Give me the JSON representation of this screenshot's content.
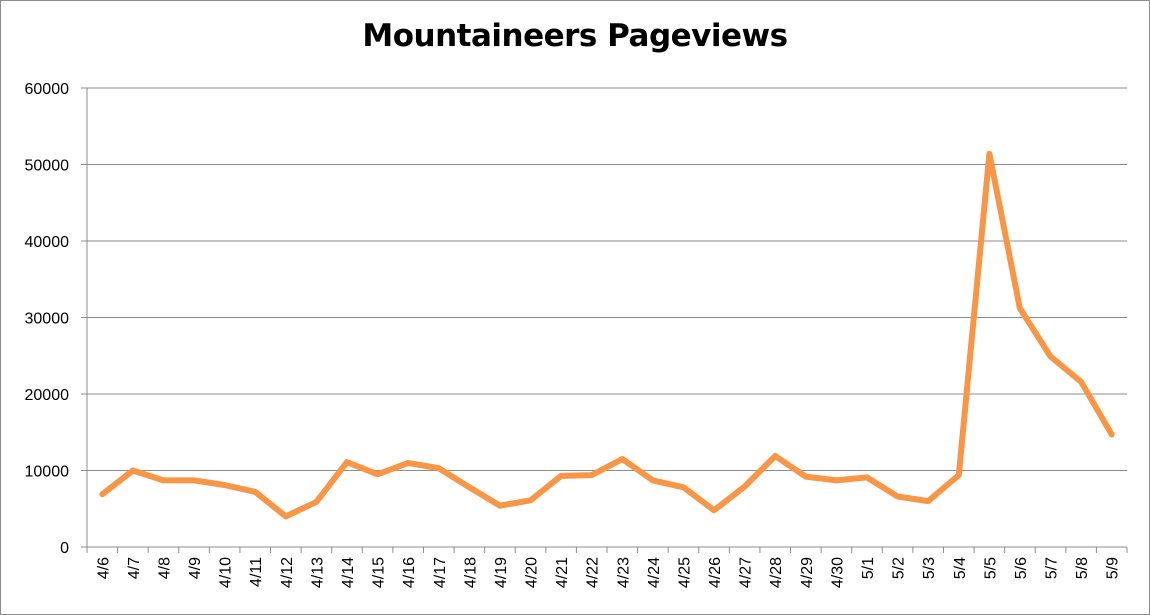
{
  "chart_data": {
    "type": "line",
    "title": "Mountaineers Pageviews",
    "xlabel": "",
    "ylabel": "",
    "ylim": [
      0,
      60000
    ],
    "yticks": [
      0,
      10000,
      20000,
      30000,
      40000,
      50000,
      60000
    ],
    "grid": true,
    "legend": "none",
    "categories": [
      "4/6",
      "4/7",
      "4/8",
      "4/9",
      "4/10",
      "4/11",
      "4/12",
      "4/13",
      "4/14",
      "4/15",
      "4/16",
      "4/17",
      "4/18",
      "4/19",
      "4/20",
      "4/21",
      "4/22",
      "4/23",
      "4/24",
      "4/25",
      "4/26",
      "4/27",
      "4/28",
      "4/29",
      "4/30",
      "5/1",
      "5/2",
      "5/3",
      "5/4",
      "5/5",
      "5/6",
      "5/7",
      "5/8",
      "5/9"
    ],
    "series": [
      {
        "name": "",
        "color": "#f79646",
        "values": [
          6900,
          10000,
          8700,
          8700,
          8100,
          7200,
          4000,
          5900,
          11100,
          9500,
          11000,
          10300,
          7800,
          5400,
          6100,
          9300,
          9400,
          11500,
          8700,
          7800,
          4800,
          7900,
          11900,
          9200,
          8700,
          9100,
          6600,
          6000,
          9400,
          51400,
          31200,
          24900,
          21600,
          14700
        ]
      }
    ]
  }
}
